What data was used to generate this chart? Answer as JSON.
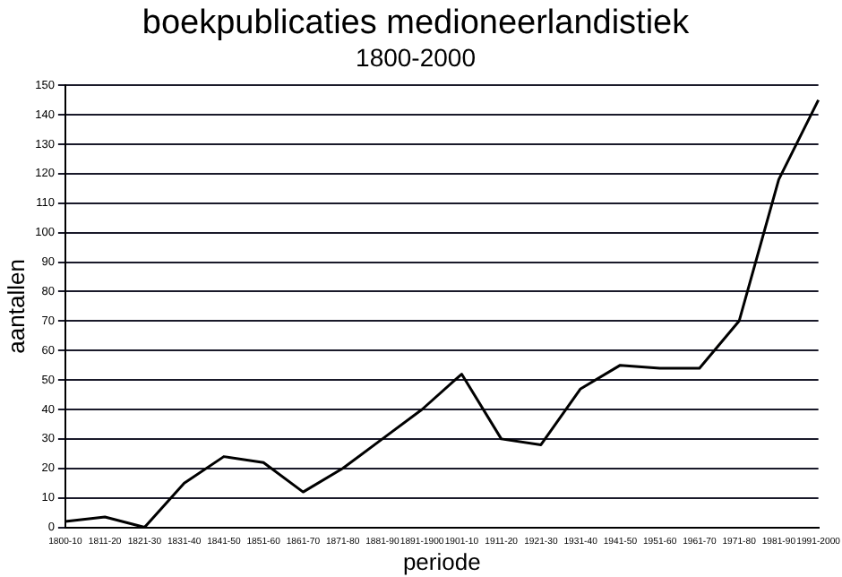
{
  "chart_data": {
    "type": "line",
    "title": "boekpublicaties medioneerlandistiek",
    "subtitle": "1800-2000",
    "xlabel": "periode",
    "ylabel": "aantallen",
    "categories": [
      "1800-10",
      "1811-20",
      "1821-30",
      "1831-40",
      "1841-50",
      "1851-60",
      "1861-70",
      "1871-80",
      "1881-90",
      "1891-1900",
      "1901-10",
      "1911-20",
      "1921-30",
      "1931-40",
      "1941-50",
      "1951-60",
      "1961-70",
      "1971-80",
      "1981-90",
      "1991-2000"
    ],
    "series": [
      {
        "color": "#000000",
        "values": [
          2,
          3.5,
          0,
          15,
          24,
          22,
          12,
          20,
          30,
          40,
          52,
          30,
          28,
          47,
          55,
          54,
          54,
          70,
          118,
          145
        ]
      }
    ],
    "ylim": [
      0,
      150
    ],
    "yticks": [
      0,
      10,
      20,
      30,
      40,
      50,
      60,
      70,
      80,
      90,
      100,
      110,
      120,
      130,
      140,
      150
    ],
    "grid": "y",
    "legend": false,
    "marker": "none",
    "line_style": "solid"
  }
}
